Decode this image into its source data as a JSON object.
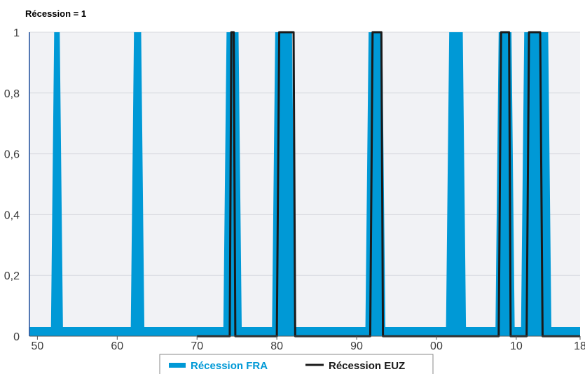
{
  "chart_data": {
    "type": "area",
    "ylabel": "Récession = 1",
    "ylim": [
      0,
      1
    ],
    "xlim": [
      1949,
      2018
    ],
    "yticks": [
      {
        "value": 0,
        "label": "0"
      },
      {
        "value": 0.2,
        "label": "0,2"
      },
      {
        "value": 0.4,
        "label": "0,4"
      },
      {
        "value": 0.6,
        "label": "0,6"
      },
      {
        "value": 0.8,
        "label": "0,8"
      },
      {
        "value": 1,
        "label": "1"
      }
    ],
    "xticks": [
      {
        "value": 1950,
        "label": "50"
      },
      {
        "value": 1960,
        "label": "60"
      },
      {
        "value": 1970,
        "label": "70"
      },
      {
        "value": 1980,
        "label": "80"
      },
      {
        "value": 1990,
        "label": "90"
      },
      {
        "value": 2000,
        "label": "00"
      },
      {
        "value": 2010,
        "label": "10"
      },
      {
        "value": 2018,
        "label": "18"
      }
    ],
    "grid": true,
    "legend_position": "bottom",
    "series": [
      {
        "name": "Récession FRA",
        "kind": "area",
        "color": "#0099d6",
        "baseline": 0.03,
        "x": [
          1949,
          1951.7,
          1952.1,
          1952.8,
          1953.2,
          1961.7,
          1962.1,
          1963.0,
          1963.4,
          1973.3,
          1973.7,
          1975.2,
          1975.6,
          1979.4,
          1979.8,
          1981.9,
          1982.3,
          1991.1,
          1991.5,
          1993.2,
          1993.6,
          2001.2,
          2001.6,
          2003.3,
          2003.7,
          2007.4,
          2007.8,
          2009.4,
          2009.8,
          2010.6,
          2011.0,
          2014.0,
          2014.4,
          2018
        ],
        "values": [
          0,
          0,
          1,
          1,
          0,
          0,
          1,
          1,
          0,
          0,
          1,
          1,
          0,
          0,
          1,
          1,
          0,
          0,
          1,
          1,
          0,
          0,
          1,
          1,
          0,
          0,
          1,
          1,
          0,
          0,
          1,
          1,
          0,
          0
        ]
      },
      {
        "name": "Récession EUZ",
        "kind": "line",
        "color": "#1a1a1a",
        "x": [
          1970,
          1974.1,
          1974.3,
          1974.6,
          1974.8,
          1980.0,
          1980.3,
          1982.1,
          1982.3,
          1991.7,
          1992.0,
          1993.1,
          1993.3,
          2007.8,
          2008.1,
          2009.1,
          2009.3,
          2011.3,
          2011.6,
          2013.0,
          2013.3,
          2018
        ],
        "values": [
          0,
          0,
          1,
          1,
          0,
          0,
          1,
          1,
          0,
          0,
          1,
          1,
          0,
          0,
          1,
          1,
          0,
          0,
          1,
          1,
          0,
          0
        ]
      }
    ]
  },
  "legend": {
    "items": [
      {
        "label": "Récession FRA",
        "color": "#0099d6"
      },
      {
        "label": "Récession EUZ",
        "color": "#1a1a1a"
      }
    ]
  }
}
